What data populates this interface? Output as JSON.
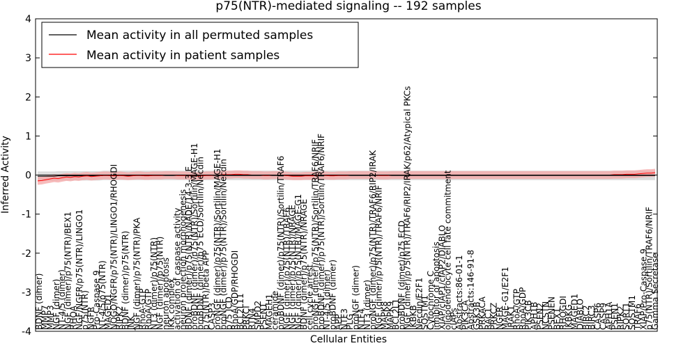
{
  "chart_data": {
    "type": "line",
    "title": "p75(NTR)-mediated signaling -- 192 samples",
    "xlabel": "Cellular Entities",
    "ylabel": "Inferred Activity",
    "ylim": [
      -4,
      4
    ],
    "yticks": [
      -4,
      -3,
      -2,
      -1,
      0,
      1,
      2,
      3,
      4
    ],
    "legend_position": "top-left",
    "grid": false,
    "x_count": 151,
    "x_labels": [
      {
        "i": 0,
        "label": "BDNF (dimer)"
      },
      {
        "i": 1,
        "label": "MMP7"
      },
      {
        "i": 2,
        "label": "MMP3"
      },
      {
        "i": 3,
        "label": "NGF (dimer)"
      },
      {
        "i": 4,
        "label": "NT-4/5 (dimer)"
      },
      {
        "i": 5,
        "label": "NGF (dimer)/p75(NTR)/BEX1"
      },
      {
        "i": 6,
        "label": "RHOA"
      },
      {
        "i": 7,
        "label": "NGF/NGFR/p75(NTR)/LINGO1"
      },
      {
        "i": 8,
        "label": "p75(NTR)"
      },
      {
        "i": 9,
        "label": "NGFR"
      },
      {
        "i": 10,
        "label": "Pro-Caspase 9"
      },
      {
        "i": 11,
        "label": "NT-4/5/p75(NTR)"
      },
      {
        "i": 12,
        "label": "MAGED1"
      },
      {
        "i": 13,
        "label": "NOGO/NGFR/p75(NTR)/LINGO1/RHOGDI"
      },
      {
        "i": 14,
        "label": "RIPK2"
      },
      {
        "i": 15,
        "label": "BDNF (dimer)/p75(NTR)"
      },
      {
        "i": 16,
        "label": "JNK"
      },
      {
        "i": 17,
        "label": "NGF (dimer)/p75(NTR)/PKA"
      },
      {
        "i": 18,
        "label": "RhoA-GTP"
      },
      {
        "i": 19,
        "label": "RhoA/GTP"
      },
      {
        "i": 20,
        "label": "NT3 (dimer)/p75(NTR)"
      },
      {
        "i": 21,
        "label": "NGF (dimer)/p75(NTR)"
      },
      {
        "i": 22,
        "label": "neuron apoptosis"
      },
      {
        "i": 23,
        "label": "IKK complex"
      },
      {
        "i": 24,
        "label": "activation of caspase activity"
      },
      {
        "i": 25,
        "label": "neuron projection morphogenesis"
      },
      {
        "i": 26,
        "label": "BDNF (dimer)/p75(NTR)/NADE/14-3-3 E"
      },
      {
        "i": 27,
        "label": "proBDNF (dimer)/p75(NTR)/Sortilin/MAGE-H1"
      },
      {
        "i": 28,
        "label": "proBDNF (dimer)/p75 ECD/Sortilin/Necdin"
      },
      {
        "i": 29,
        "label": "p75(NTR)/beta APP"
      },
      {
        "i": 30,
        "label": "CASP3"
      },
      {
        "i": 31,
        "label": "proNGF (dimer)/p75(NTR)/Sortilin/MAGE-H1"
      },
      {
        "i": 32,
        "label": "proNGF (dimer)/p75(NTR)/Sortilin/Necdin"
      },
      {
        "i": 33,
        "label": "p75 ICD"
      },
      {
        "i": 34,
        "label": "RhoA/GDP/RHOGDI"
      },
      {
        "i": 35,
        "label": "BCL2L11"
      },
      {
        "i": 36,
        "label": "PRKCI"
      },
      {
        "i": 37,
        "label": "RTN4"
      },
      {
        "i": 38,
        "label": "SMPD2"
      },
      {
        "i": 39,
        "label": "PSEN1"
      },
      {
        "i": 40,
        "label": "MAGEH1"
      },
      {
        "i": 41,
        "label": "ceramide"
      },
      {
        "i": 42,
        "label": "proBDNF (dimer)/p75(NTR)/Sortilin/TRAF6"
      },
      {
        "i": 43,
        "label": "NGF (dimer)/p75(NTR)/TRAF6"
      },
      {
        "i": 44,
        "label": "NGF (dimer)/p75(NTR)/NRAGE"
      },
      {
        "i": 45,
        "label": "NGF (dimer)/p75(NTR)/MAGE-G1"
      },
      {
        "i": 46,
        "label": "BDNF (dimer)/p75(NTR)/NRAGE"
      },
      {
        "i": 47,
        "label": "cell cycle arrest"
      },
      {
        "i": 48,
        "label": "proNGF (dimer)/p75(NTR)/Sortilin/TRAF6/NRIF"
      },
      {
        "i": 49,
        "label": "proBDNF (dimer)/p75(NTR)/Sortilin/TRAF6/NRIF"
      },
      {
        "i": 50,
        "label": "NT-4/5 (dimer)"
      },
      {
        "i": 51,
        "label": "proBDNF (dimer)"
      },
      {
        "i": 52,
        "label": "APP"
      },
      {
        "i": 53,
        "label": "NTF3"
      },
      {
        "i": 54,
        "label": "PLG"
      },
      {
        "i": 55,
        "label": "proNGF (dimer)"
      },
      {
        "i": 56,
        "label": "NTF4"
      },
      {
        "i": 57,
        "label": "NT3 (dimer)"
      },
      {
        "i": 58,
        "label": "proNGF (dimer)/p75(NTR)/TRAF6/RIP2/IRAK"
      },
      {
        "i": 59,
        "label": "NGF (dimer)/p75(NTR)/TRAF6/NRIF"
      },
      {
        "i": 60,
        "label": "MAPK8"
      },
      {
        "i": 61,
        "label": "MAPK9"
      },
      {
        "i": 62,
        "label": "BCL2L1"
      },
      {
        "i": 63,
        "label": "proBDNF (dimer)/p75 ECD"
      },
      {
        "i": 64,
        "label": "NGF (dimer)/p75(NTR)/TRAF6/RIP2/IRAK/p62/Atypical PKCs"
      },
      {
        "i": 65,
        "label": "IKBKB"
      },
      {
        "i": 66,
        "label": "Necdin/E2F1"
      },
      {
        "i": 67,
        "label": "SQSTM1"
      },
      {
        "i": 68,
        "label": "Cytochrome C"
      },
      {
        "i": 69,
        "label": "inhibitor of apoptosis"
      },
      {
        "i": 70,
        "label": "XIAP/cIAP1/cIAP2/DIABLO"
      },
      {
        "i": 71,
        "label": "oligodendrocyte cell fate commitment"
      },
      {
        "i": 72,
        "label": "cIAPs"
      },
      {
        "i": 73,
        "label": "Abstracts:86-01-1"
      },
      {
        "i": 74,
        "label": "PIK3CA"
      },
      {
        "i": 75,
        "label": "Abstracts:146-91-8"
      },
      {
        "i": 76,
        "label": "GSK3B"
      },
      {
        "i": 77,
        "label": "PRKACA"
      },
      {
        "i": 78,
        "label": "RAC1"
      },
      {
        "i": 79,
        "label": "PRKCZ"
      },
      {
        "i": 80,
        "label": "NGFR"
      },
      {
        "i": 81,
        "label": "MAGE-G1/E2F1"
      },
      {
        "i": 82,
        "label": "IRAK1"
      },
      {
        "i": 83,
        "label": "RhoA/GTP"
      },
      {
        "i": 84,
        "label": "RhoA/GDP"
      },
      {
        "i": 85,
        "label": "PIK3CB"
      },
      {
        "i": 86,
        "label": "APH1B"
      },
      {
        "i": 87,
        "label": "PSEN2"
      },
      {
        "i": 88,
        "label": "NCSTN"
      },
      {
        "i": 89,
        "label": "PSENEN"
      },
      {
        "i": 90,
        "label": "BEX1"
      },
      {
        "i": 91,
        "label": "RHOGDI"
      },
      {
        "i": 92,
        "label": "IKBKG"
      },
      {
        "i": 93,
        "label": "MAGED1"
      },
      {
        "i": 94,
        "label": "DIABLO"
      },
      {
        "i": 95,
        "label": "BIRC2"
      },
      {
        "i": 96,
        "label": "BIRC3"
      },
      {
        "i": 97,
        "label": "CASP6"
      },
      {
        "i": 98,
        "label": "CASP9"
      },
      {
        "i": 99,
        "label": "APH1A"
      },
      {
        "i": 100,
        "label": "PSEN1"
      },
      {
        "i": 101,
        "label": "RIPK2"
      },
      {
        "i": 102,
        "label": "SORT1"
      },
      {
        "i": 103,
        "label": "SQSTM1"
      },
      {
        "i": 104,
        "label": "TRAF6"
      },
      {
        "i": 105,
        "label": "XIAP/Pro-Caspase 9"
      },
      {
        "i": 106,
        "label": "p75(NTR)/Sortilin/TRAF6/NRIF"
      },
      {
        "i": 107,
        "label": "Gamma Secretase"
      }
    ],
    "series": [
      {
        "name": "Mean activity in all permuted samples",
        "color": "#000000",
        "band_color": "#bfbfbf",
        "values": [
          -0.03,
          -0.03,
          -0.03,
          -0.03,
          -0.03,
          -0.02,
          -0.02,
          -0.02,
          -0.02,
          -0.02,
          -0.02,
          -0.02,
          -0.02,
          -0.02,
          -0.02,
          -0.02,
          -0.01,
          -0.01,
          -0.01,
          -0.01,
          -0.01,
          -0.01,
          -0.01,
          -0.01,
          -0.01,
          -0.01,
          -0.01,
          -0.01,
          -0.01,
          -0.01,
          -0.01,
          -0.01,
          -0.01,
          -0.01,
          -0.01,
          -0.01,
          -0.01,
          -0.01,
          -0.01,
          -0.01,
          -0.01,
          -0.01,
          -0.01,
          -0.01,
          -0.01,
          -0.01,
          -0.01,
          -0.01,
          -0.01,
          -0.01,
          -0.01,
          -0.01,
          -0.01,
          -0.01,
          -0.01,
          -0.01,
          -0.01,
          -0.01,
          -0.01,
          -0.01,
          -0.01,
          -0.01,
          -0.01,
          -0.01,
          -0.01,
          -0.01,
          -0.01,
          -0.01,
          -0.01,
          -0.01,
          -0.01,
          -0.01,
          -0.01,
          -0.01,
          -0.01,
          -0.01,
          -0.01,
          -0.01,
          -0.01,
          -0.01,
          -0.01,
          -0.01,
          -0.01,
          -0.01,
          -0.01,
          -0.01,
          -0.01,
          -0.01,
          -0.01,
          -0.01,
          -0.01,
          -0.01,
          -0.01,
          -0.01,
          -0.01,
          -0.01,
          -0.01,
          -0.01,
          -0.01,
          -0.01,
          -0.01,
          -0.01,
          -0.01,
          -0.01,
          -0.01,
          -0.01,
          -0.01,
          -0.01,
          -0.01,
          -0.01,
          -0.01,
          -0.01,
          -0.01,
          -0.01,
          -0.01,
          -0.01,
          -0.01,
          -0.01,
          -0.01,
          -0.01,
          -0.01,
          -0.01,
          -0.01,
          -0.01,
          -0.01,
          -0.01,
          -0.01,
          -0.01,
          -0.01,
          -0.01,
          -0.01,
          -0.01,
          -0.01,
          -0.01,
          -0.01,
          -0.01,
          -0.01,
          -0.01,
          -0.01,
          -0.01,
          -0.01,
          -0.01,
          -0.01,
          -0.01,
          -0.01,
          -0.01,
          -0.01,
          -0.01,
          -0.01,
          -0.01,
          -0.01
        ],
        "band": 0.12
      },
      {
        "name": "Mean activity in patient samples",
        "color": "#ff0000",
        "band_color": "#f4a6a6",
        "values": [
          -0.15,
          -0.14,
          -0.12,
          -0.1,
          -0.08,
          -0.09,
          -0.07,
          -0.05,
          -0.06,
          -0.04,
          -0.05,
          -0.03,
          -0.02,
          -0.04,
          -0.03,
          -0.02,
          -0.01,
          -0.01,
          -0.02,
          -0.02,
          -0.01,
          -0.02,
          -0.03,
          -0.02,
          -0.01,
          -0.01,
          -0.02,
          -0.02,
          -0.01,
          -0.01,
          -0.01,
          0.0,
          0.0,
          0.0,
          -0.01,
          -0.01,
          -0.01,
          -0.02,
          -0.02,
          -0.03,
          -0.02,
          -0.01,
          -0.01,
          0.0,
          0.0,
          0.01,
          0.01,
          0.01,
          0.02,
          0.02,
          0.01,
          0.01,
          0.0,
          0.0,
          0.0,
          -0.01,
          -0.01,
          0.0,
          0.0,
          0.0,
          -0.01,
          -0.02,
          -0.03,
          -0.03,
          -0.03,
          -0.02,
          -0.02,
          -0.02,
          -0.01,
          -0.01,
          -0.01,
          -0.02,
          -0.02,
          -0.01,
          -0.01,
          -0.01,
          0.0,
          0.0,
          0.0,
          0.0,
          0.0,
          0.0,
          0.0,
          -0.01,
          -0.01,
          -0.01,
          0.0,
          0.0,
          0.0,
          0.0,
          0.0,
          0.0,
          0.0,
          0.0,
          0.0,
          0.0,
          0.0,
          0.0,
          0.0,
          0.0,
          0.0,
          0.0,
          0.0,
          0.0,
          0.0,
          0.0,
          0.0,
          0.0,
          0.0,
          0.0,
          0.0,
          0.0,
          0.0,
          0.0,
          0.0,
          0.0,
          0.0,
          0.0,
          0.0,
          0.0,
          0.0,
          0.0,
          0.0,
          0.0,
          0.0,
          0.0,
          0.0,
          0.0,
          0.0,
          0.0,
          0.0,
          0.0,
          0.0,
          0.0,
          0.0,
          0.0,
          0.0,
          0.0,
          0.0,
          0.0,
          0.01,
          0.01,
          0.01,
          0.02,
          0.02,
          0.02,
          0.03,
          0.04,
          0.05,
          0.05,
          0.06
        ],
        "band": 0.1
      }
    ]
  }
}
